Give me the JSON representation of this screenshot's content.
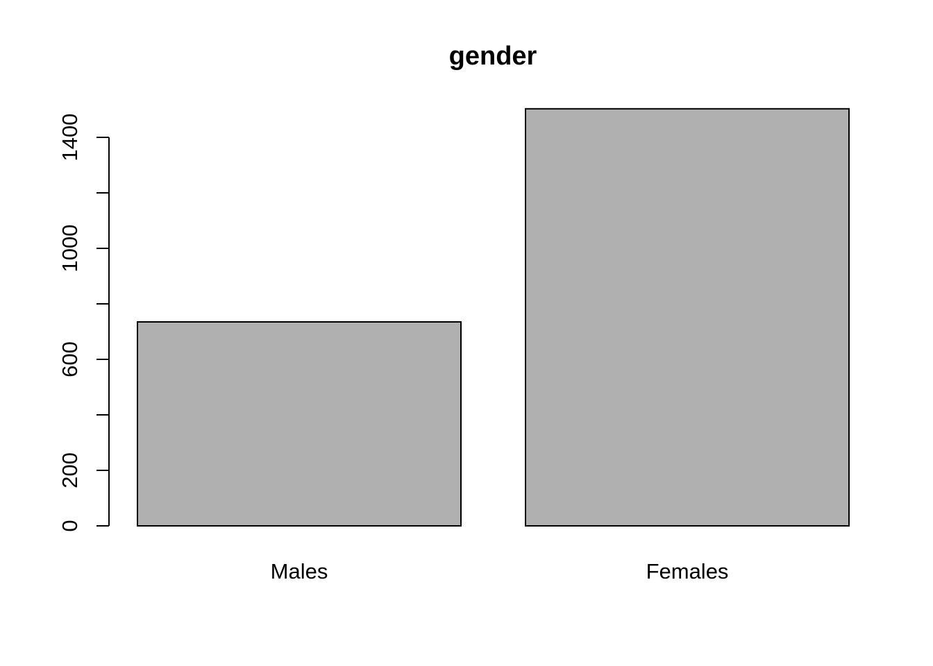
{
  "chart_data": {
    "type": "bar",
    "title": "gender",
    "xlabel": "",
    "ylabel": "",
    "categories": [
      "Males",
      "Females"
    ],
    "values": [
      735,
      1503
    ],
    "ylim": [
      0,
      1500
    ],
    "y_ticks": [
      0,
      200,
      400,
      600,
      800,
      1000,
      1200,
      1400
    ],
    "y_tick_labels": [
      "0",
      "200",
      "",
      "600",
      "",
      "1000",
      "",
      "1400"
    ],
    "bar_color": "#b0b0b0",
    "grid": false,
    "legend": "none"
  }
}
